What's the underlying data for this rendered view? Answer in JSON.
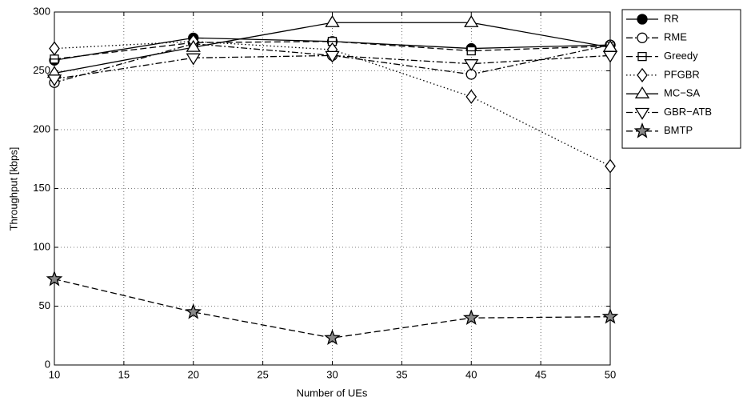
{
  "chart_data": {
    "type": "line",
    "xlabel": "Number of UEs",
    "ylabel": "Throughput [kbps]",
    "x": [
      10,
      20,
      30,
      40,
      50
    ],
    "xlim": [
      10,
      50
    ],
    "xticks": [
      10,
      15,
      20,
      25,
      30,
      35,
      40,
      45,
      50
    ],
    "ylim": [
      0,
      300
    ],
    "yticks": [
      0,
      50,
      100,
      150,
      200,
      250,
      300
    ],
    "grid": true,
    "legend": "outside-upper-right",
    "series": [
      {
        "name": "RR",
        "color": "#000000",
        "dash": "solid",
        "marker": "circle-filled",
        "values": [
          259,
          278,
          275,
          269,
          272
        ]
      },
      {
        "name": "RME",
        "color": "#000000",
        "dash": "dashdot",
        "marker": "circle",
        "values": [
          240,
          273,
          263,
          247,
          272
        ]
      },
      {
        "name": "Greedy",
        "color": "#000000",
        "dash": "dashed",
        "marker": "square-line",
        "values": [
          260,
          274,
          275,
          267,
          271
        ]
      },
      {
        "name": "PFGBR",
        "color": "#000000",
        "dash": "dotted",
        "marker": "diamond",
        "values": [
          269,
          275,
          268,
          228,
          169
        ]
      },
      {
        "name": "MC−SA",
        "color": "#000000",
        "dash": "solid",
        "marker": "triangle-up",
        "values": [
          248,
          270,
          291,
          291,
          270
        ]
      },
      {
        "name": "GBR−ATB",
        "color": "#000000",
        "dash": "dashdot",
        "marker": "triangle-down",
        "values": [
          243,
          261,
          263,
          256,
          263
        ]
      },
      {
        "name": "BMTP",
        "color": "#000000",
        "dash": "dashed",
        "marker": "star",
        "values": [
          73,
          45,
          23,
          40,
          41
        ]
      }
    ]
  }
}
